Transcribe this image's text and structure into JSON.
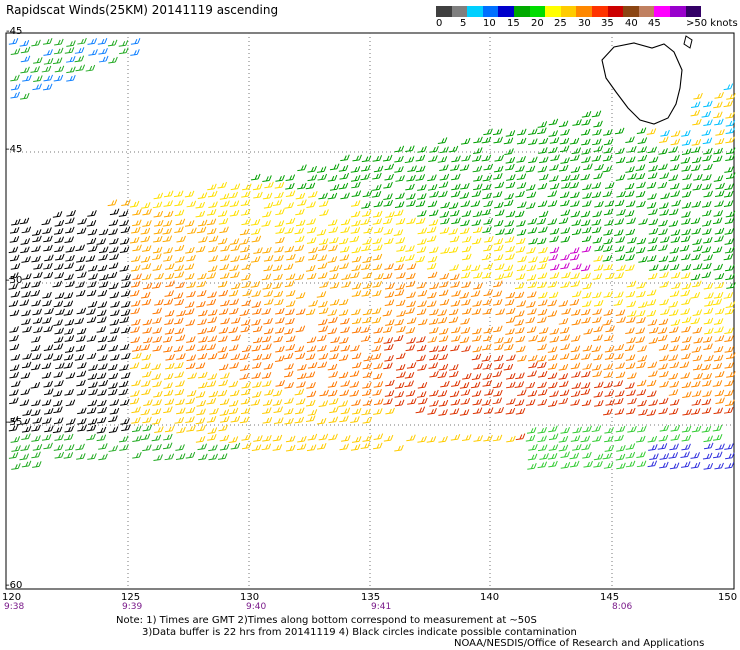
{
  "title": "Rapidscat Winds(25KM) 20141119 ascending",
  "legend": {
    "colors": [
      "#404040",
      "#7f7f7f",
      "#00d0ff",
      "#0070ff",
      "#0000cc",
      "#00aa00",
      "#00dd00",
      "#ffff00",
      "#ffcc00",
      "#ff8800",
      "#ff3300",
      "#cc0000",
      "#8b4513",
      "#c08060",
      "#ff00ff",
      "#9900cc",
      "#330066"
    ],
    "labels": [
      "0",
      "5",
      "10",
      "15",
      "20",
      "25",
      "30",
      "35",
      "40",
      "45",
      ">50 knots"
    ]
  },
  "lat_labels": [
    "-45",
    "-45",
    "-50",
    "-55",
    "-60"
  ],
  "lon_labels": [
    "120",
    "125",
    "130",
    "135",
    "140",
    "145",
    "150"
  ],
  "time_labels": [
    "9:38",
    "9:39",
    "9:40",
    "9:41",
    "8:06"
  ],
  "notes": [
    "Note: 1) Times are GMT 2)Times along bottom correspond to measurement at ~50S",
    "3)Data buffer is 22 hrs from 20141119 4) Black circles indicate possible contamination",
    "NOAA/NESDIS/Office of Research and Applications"
  ]
}
